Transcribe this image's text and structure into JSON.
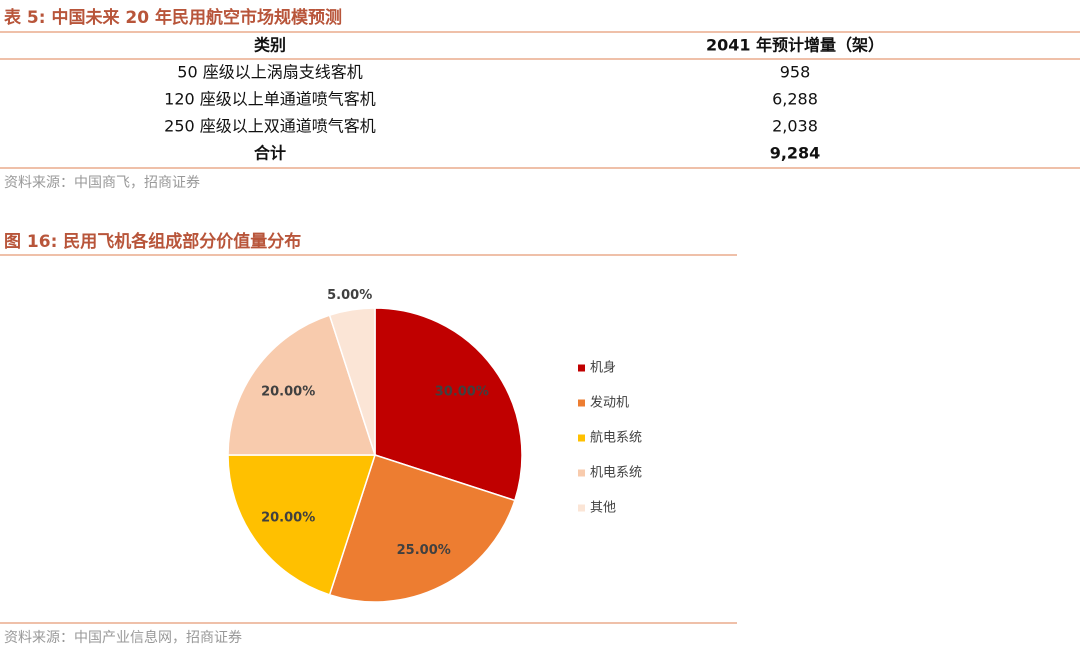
{
  "table": {
    "title": "表 5: 中国未来 20 年民用航空市场规模预测",
    "header": [
      "类别",
      "2041 年预计增量（架）"
    ],
    "rows": [
      [
        "50 座级以上涡扇支线客机",
        "958"
      ],
      [
        "120 座级以上单通道喷气客机",
        "6,288"
      ],
      [
        "250 座级以上双通道喷气客机",
        "2,038"
      ]
    ],
    "total": [
      "合计",
      "9,284"
    ],
    "source": "资料来源：中国商飞，招商证券"
  },
  "chart_data": {
    "type": "pie",
    "title": "图 16: 民用飞机各组成部分价值量分布",
    "categories": [
      "机身",
      "发动机",
      "航电系统",
      "机电系统",
      "其他"
    ],
    "values": [
      30,
      25,
      20,
      20,
      5
    ],
    "value_labels": [
      "30.00%",
      "25.00%",
      "20.00%",
      "20.00%",
      "5.00%"
    ],
    "colors": [
      "#c00000",
      "#ed7d31",
      "#ffc000",
      "#f8cbad",
      "#fbe5d6"
    ],
    "legend": "right",
    "source": "资料来源：中国产业信息网，招商证券"
  }
}
